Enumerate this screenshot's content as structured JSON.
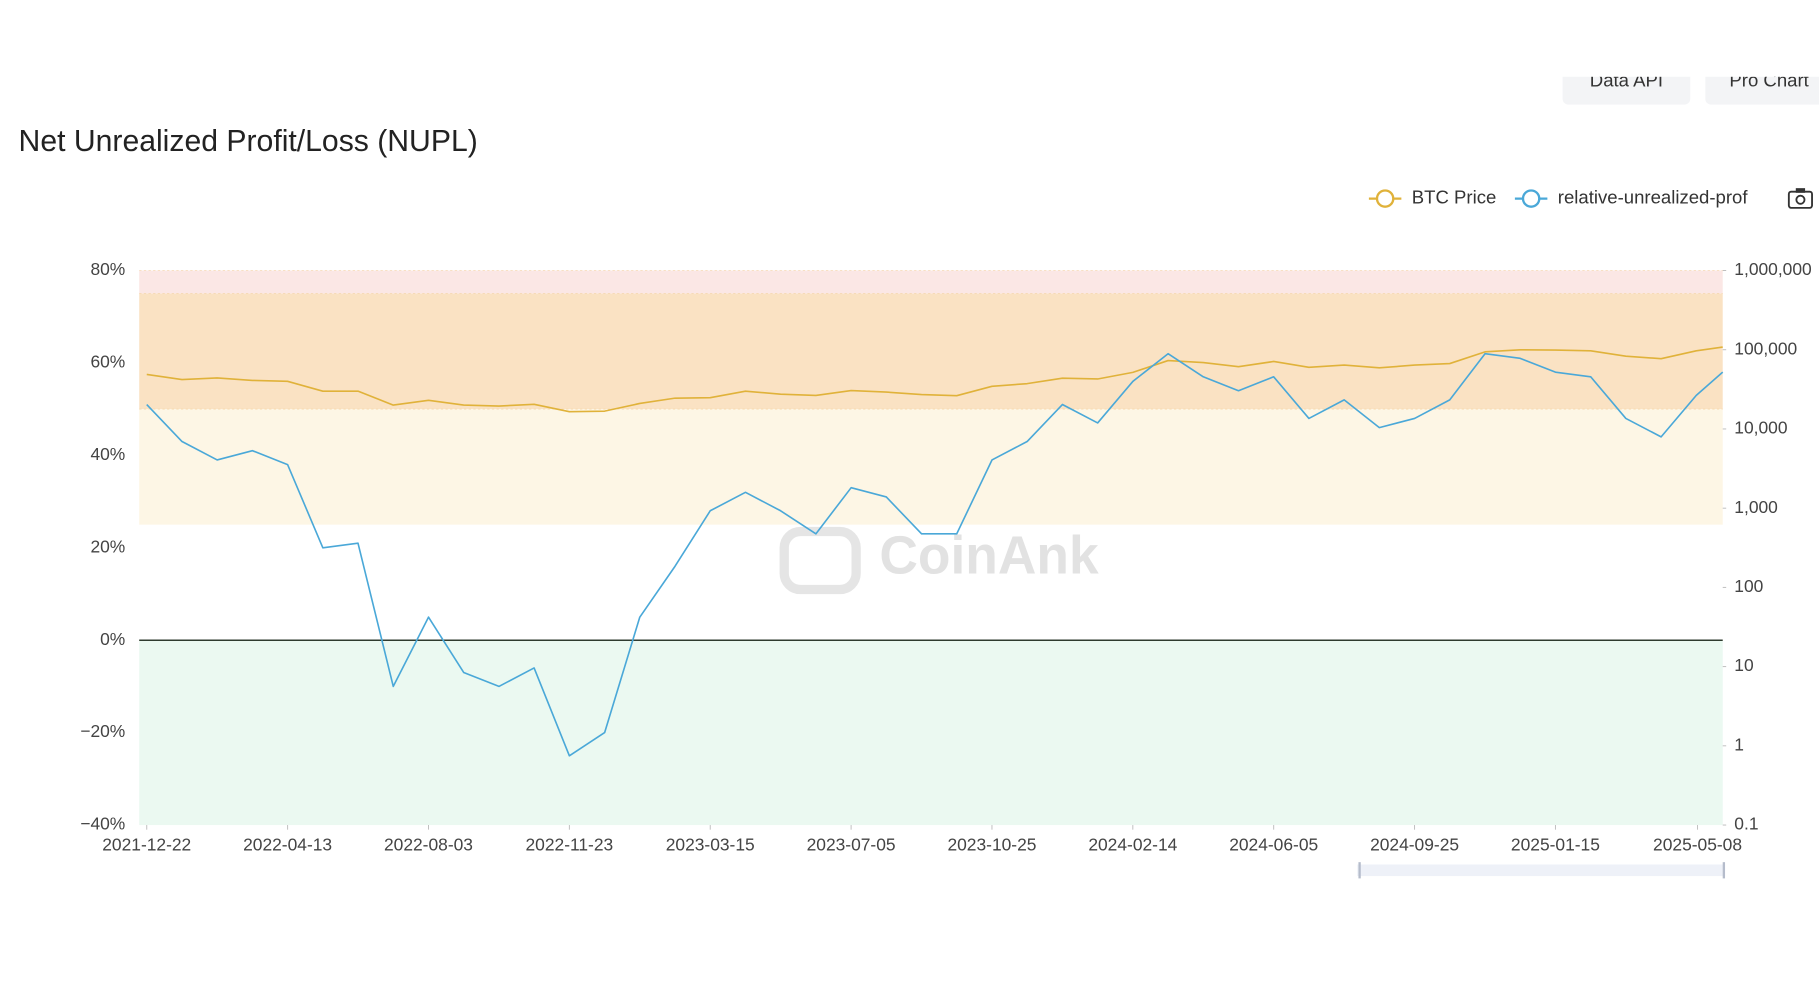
{
  "header": {
    "buttons": [
      "Data API",
      "Pro Chart"
    ]
  },
  "chart_data": {
    "type": "line",
    "title": "Net Unrealized Profit/Loss (NUPL)",
    "watermark": "CoinAnk",
    "x": [
      "2021-12-22",
      "2022-01-19",
      "2022-02-16",
      "2022-03-16",
      "2022-04-13",
      "2022-05-11",
      "2022-06-08",
      "2022-07-06",
      "2022-08-03",
      "2022-08-31",
      "2022-09-28",
      "2022-10-26",
      "2022-11-23",
      "2022-12-21",
      "2023-01-18",
      "2023-02-15",
      "2023-03-15",
      "2023-04-12",
      "2023-05-10",
      "2023-06-07",
      "2023-07-05",
      "2023-08-02",
      "2023-08-30",
      "2023-09-27",
      "2023-10-25",
      "2023-11-22",
      "2023-12-20",
      "2024-01-17",
      "2024-02-14",
      "2024-03-13",
      "2024-04-10",
      "2024-05-08",
      "2024-06-05",
      "2024-07-03",
      "2024-07-31",
      "2024-08-28",
      "2024-09-25",
      "2024-10-23",
      "2024-11-20",
      "2024-12-18",
      "2025-01-15",
      "2025-02-12",
      "2025-03-12",
      "2025-04-09",
      "2025-05-07",
      "2025-05-28"
    ],
    "series": [
      {
        "name": "BTC Price",
        "axis": "y2",
        "color": "#e0b23a",
        "values": [
          48800,
          42000,
          44000,
          41000,
          40000,
          30000,
          30000,
          20000,
          23000,
          20000,
          19500,
          20500,
          16500,
          16800,
          21000,
          24500,
          24800,
          30000,
          27500,
          26500,
          30500,
          29200,
          27200,
          26300,
          34500,
          37400,
          43700,
          42700,
          51800,
          73000,
          69000,
          61000,
          71000,
          60000,
          64000,
          59000,
          64000,
          67000,
          94000,
          100000,
          99000,
          97000,
          83000,
          77000,
          97000,
          108000
        ]
      },
      {
        "name": "relative-unrealized-prof",
        "color": "#4aa8d8",
        "values": [
          51,
          43,
          39,
          41,
          38,
          20,
          21,
          -10,
          5,
          -7,
          -10,
          -6,
          -25,
          -20,
          5,
          16,
          28,
          32,
          28,
          23,
          33,
          31,
          23,
          23,
          39,
          43,
          51,
          47,
          56,
          62,
          57,
          54,
          57,
          48,
          52,
          46,
          48,
          52,
          62,
          61,
          58,
          57,
          48,
          44,
          53,
          58
        ]
      }
    ],
    "xlim": [
      "2021-12-16",
      "2025-05-28"
    ],
    "xticks": [
      "2021-12-22",
      "2022-04-13",
      "2022-08-03",
      "2022-11-23",
      "2023-03-15",
      "2023-07-05",
      "2023-10-25",
      "2024-02-14",
      "2024-06-05",
      "2024-09-25",
      "2025-01-15",
      "2025-05-08"
    ],
    "ylim": [
      -40,
      80
    ],
    "yticks": [
      {
        "value": -40,
        "label": "−40%"
      },
      {
        "value": -20,
        "label": "−20%"
      },
      {
        "value": 0,
        "label": "0%"
      },
      {
        "value": 20,
        "label": "20%"
      },
      {
        "value": 40,
        "label": "40%"
      },
      {
        "value": 60,
        "label": "60%"
      },
      {
        "value": 80,
        "label": "80%"
      }
    ],
    "y2lim": [
      0.1,
      1000000
    ],
    "y2log": true,
    "y2ticks": [
      0.1,
      1,
      10,
      100,
      {
        "value": 1000,
        "label": "1,000"
      },
      {
        "value": 10000,
        "label": "10,000"
      },
      {
        "value": 100000,
        "label": "100,000"
      },
      {
        "value": 1000000,
        "label": "1,000,000"
      }
    ],
    "zones": [
      {
        "range": [
          75,
          80
        ],
        "color": "#fbe7e5"
      },
      {
        "range": [
          50,
          75
        ],
        "color": "#fae2c3"
      },
      {
        "range": [
          25,
          50
        ],
        "color": "#fdf6e5"
      },
      {
        "range": [
          -40,
          0
        ],
        "color": "#ebf9f1"
      }
    ],
    "legend": "top-right"
  }
}
